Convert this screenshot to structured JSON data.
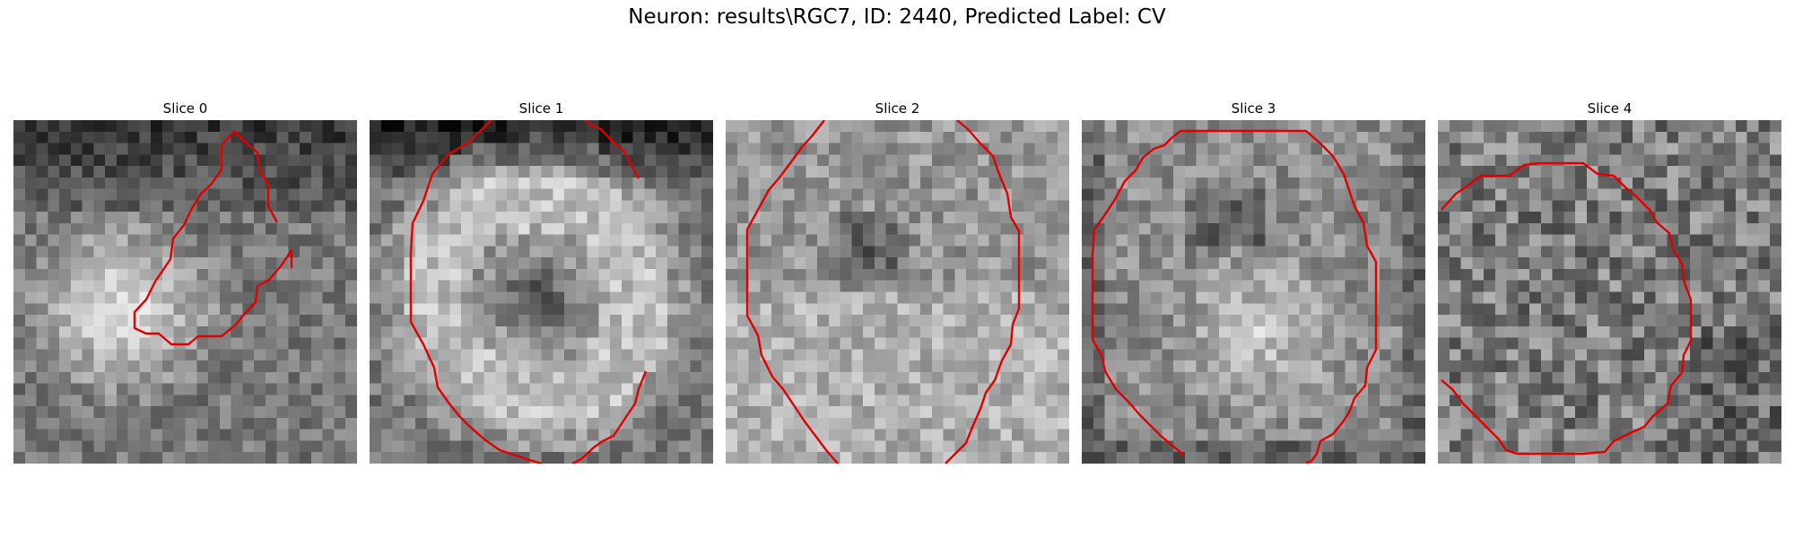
{
  "figure": {
    "title": "Neuron: results\\RGC7, ID: 2440, Predicted Label: CV"
  },
  "colors": {
    "contour": "#e00000",
    "background": "#ffffff",
    "colormap": "gray"
  },
  "slices": [
    {
      "title": "Slice 0"
    },
    {
      "title": "Slice 1"
    },
    {
      "title": "Slice 2"
    },
    {
      "title": "Slice 3"
    },
    {
      "title": "Slice 4"
    }
  ]
}
